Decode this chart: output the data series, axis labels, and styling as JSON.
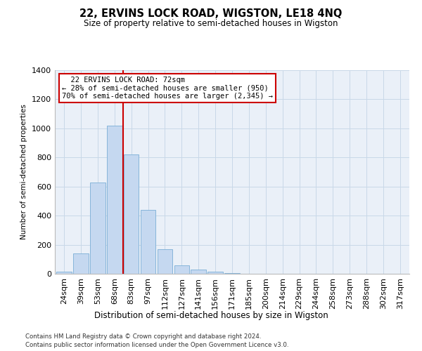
{
  "title": "22, ERVINS LOCK ROAD, WIGSTON, LE18 4NQ",
  "subtitle": "Size of property relative to semi-detached houses in Wigston",
  "xlabel": "Distribution of semi-detached houses by size in Wigston",
  "ylabel": "Number of semi-detached properties",
  "footnote1": "Contains HM Land Registry data © Crown copyright and database right 2024.",
  "footnote2": "Contains public sector information licensed under the Open Government Licence v3.0.",
  "bin_labels": [
    "24sqm",
    "39sqm",
    "53sqm",
    "68sqm",
    "83sqm",
    "97sqm",
    "112sqm",
    "127sqm",
    "141sqm",
    "156sqm",
    "171sqm",
    "185sqm",
    "200sqm",
    "214sqm",
    "229sqm",
    "244sqm",
    "258sqm",
    "273sqm",
    "288sqm",
    "302sqm",
    "317sqm"
  ],
  "values": [
    15,
    140,
    630,
    1020,
    820,
    440,
    170,
    60,
    30,
    15,
    5,
    0,
    0,
    0,
    0,
    0,
    0,
    0,
    0,
    0,
    0
  ],
  "bar_color": "#c5d8f0",
  "bar_edge_color": "#7aaed6",
  "grid_color": "#c8d8e8",
  "background_color": "#eaf0f8",
  "property_sqm": 72,
  "property_bin_index": 3,
  "pct_smaller": 28,
  "pct_smaller_n": 950,
  "pct_larger": 70,
  "pct_larger_n": 2345,
  "red_line_color": "#cc0000",
  "annotation_box_color": "#ffffff",
  "annotation_box_edge": "#cc0000",
  "ylim": [
    0,
    1400
  ],
  "yticks": [
    0,
    200,
    400,
    600,
    800,
    1000,
    1200,
    1400
  ]
}
